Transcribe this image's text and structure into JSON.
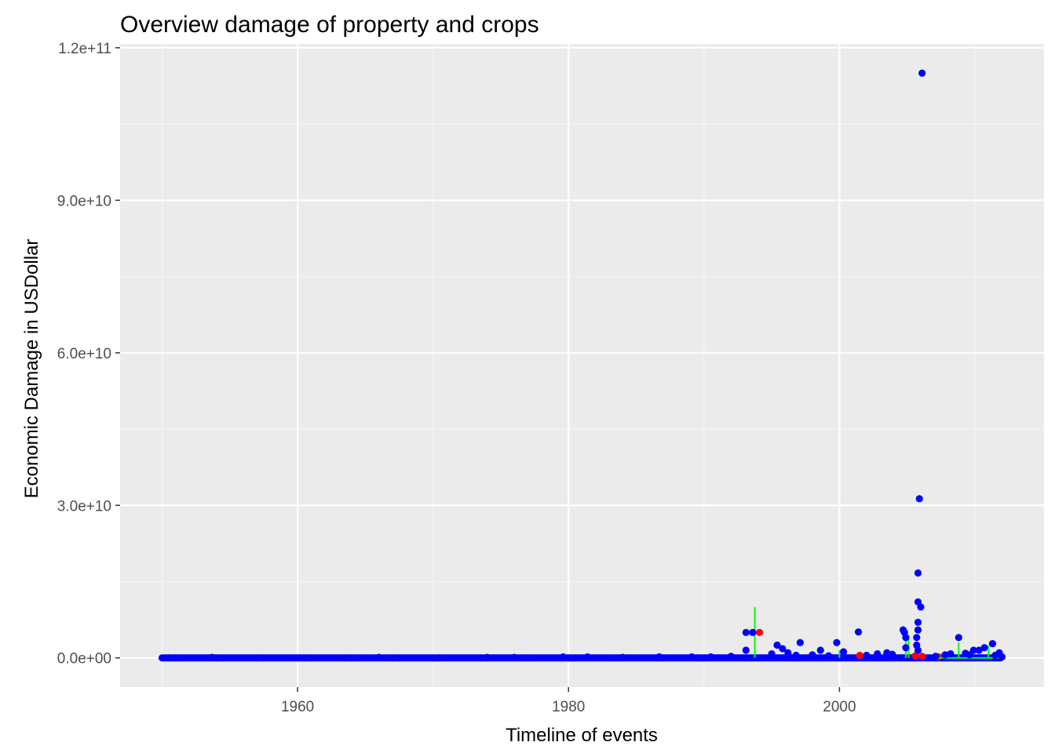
{
  "chart_data": {
    "type": "scatter",
    "title": "Overview damage of property and crops",
    "xlabel": "Timeline of events",
    "ylabel": "Economic Damage in USDollar",
    "xlim": [
      1946.9,
      2015.1
    ],
    "ylim": [
      -5750000000.0,
      120750000000.0
    ],
    "x_ticks": [
      1960,
      1980,
      2000
    ],
    "x_tick_labels": [
      "1960",
      "1980",
      "2000"
    ],
    "y_ticks": [
      0,
      30000000000.0,
      60000000000.0,
      90000000000.0,
      120000000000.0
    ],
    "y_tick_labels": [
      "0.0e+00",
      "3.0e+10",
      "6.0e+10",
      "9.0e+10",
      "1.2e+11"
    ],
    "grid": true,
    "legend": "none",
    "panel_background": "#ebebeb",
    "series": [
      {
        "color": "#ff0000",
        "points": [
          [
            1994.1,
            5000000000.0
          ],
          [
            2001.5,
            500000000.0
          ],
          [
            2005.6,
            400000000.0
          ],
          [
            2006.1,
            300000000.0
          ],
          [
            2007.3,
            200000000.0
          ]
        ]
      },
      {
        "color": "#00ff00",
        "segments": [
          [
            1993.75,
            0,
            10000000000.0
          ],
          [
            2004.9,
            0,
            4000000000.0
          ],
          [
            2005.1,
            0,
            4500000000.0
          ],
          [
            2008.8,
            0,
            3000000000.0
          ],
          [
            2011.0,
            0,
            2500000000.0
          ],
          [
            2000.0,
            0,
            1500000000.0
          ]
        ],
        "baseline": [
          2007.0,
          2012.0
        ]
      },
      {
        "color": "#0000ff",
        "points": [
          [
            2006.1,
            115000000000.0
          ],
          [
            2005.9,
            31300000000.0
          ],
          [
            2005.8,
            16700000000.0
          ],
          [
            2005.8,
            11000000000.0
          ],
          [
            2006.0,
            10000000000.0
          ],
          [
            2005.8,
            7000000000.0
          ],
          [
            2005.8,
            5500000000.0
          ],
          [
            2005.7,
            4000000000.0
          ],
          [
            2005.7,
            2500000000.0
          ],
          [
            2005.8,
            1500000000.0
          ],
          [
            1993.1,
            5000000000.0
          ],
          [
            1993.6,
            5000000000.0
          ],
          [
            1993.1,
            1500000000.0
          ],
          [
            2001.4,
            5100000000.0
          ],
          [
            2004.7,
            5500000000.0
          ],
          [
            2004.8,
            5000000000.0
          ],
          [
            2004.9,
            4000000000.0
          ],
          [
            2004.9,
            2000000000.0
          ],
          [
            1997.1,
            3000000000.0
          ],
          [
            1999.8,
            3000000000.0
          ],
          [
            2008.8,
            4000000000.0
          ],
          [
            2011.3,
            2800000000.0
          ],
          [
            1995.4,
            2500000000.0
          ],
          [
            1995.8,
            1800000000.0
          ],
          [
            1996.2,
            1000000000.0
          ],
          [
            1998.6,
            1500000000.0
          ],
          [
            2000.3,
            1200000000.0
          ],
          [
            2002.8,
            800000000.0
          ],
          [
            2003.5,
            1000000000.0
          ],
          [
            2009.9,
            1500000000.0
          ],
          [
            2010.3,
            1500000000.0
          ],
          [
            2010.7,
            2000000000.0
          ],
          [
            2011.8,
            1000000000.0
          ],
          [
            1995.0,
            800000000.0
          ],
          [
            1996.8,
            500000000.0
          ],
          [
            1998.0,
            600000000.0
          ],
          [
            1999.2,
            400000000.0
          ],
          [
            2002.0,
            500000000.0
          ],
          [
            2003.9,
            700000000.0
          ],
          [
            2007.8,
            600000000.0
          ],
          [
            2008.2,
            800000000.0
          ],
          [
            2009.3,
            900000000.0
          ],
          [
            1992.0,
            300000000.0
          ],
          [
            1990.5,
            200000000.0
          ],
          [
            1989.1,
            200000000.0
          ],
          [
            1986.7,
            200000000.0
          ],
          [
            1984.0,
            100000000.0
          ],
          [
            1981.4,
            200000000.0
          ],
          [
            1979.6,
            200000000.0
          ],
          [
            1976.0,
            100000000.0
          ],
          [
            1974.0,
            100000000.0
          ],
          [
            1966.0,
            100000000.0
          ],
          [
            1953.7,
            100000000.0
          ],
          [
            2012.0,
            200000000.0
          ],
          [
            2011.5,
            500000000.0
          ],
          [
            2009.6,
            600000000.0
          ],
          [
            2007.1,
            300000000.0
          ]
        ],
        "dense_band": [
          1950.0,
          2011.9,
          0
        ]
      }
    ]
  }
}
